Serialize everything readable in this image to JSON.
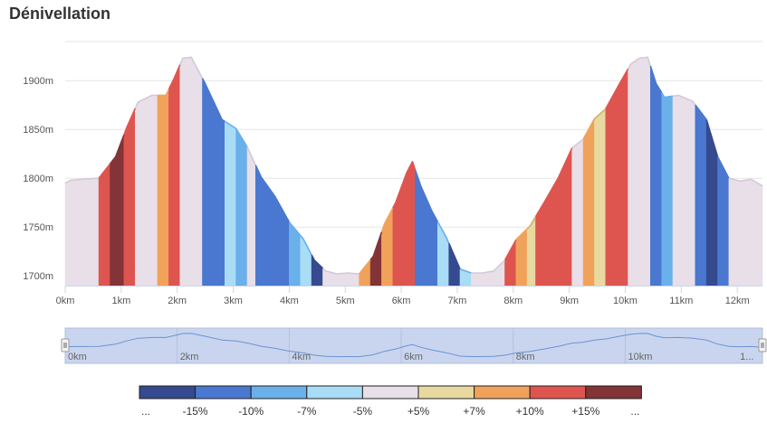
{
  "title": "Dénivellation",
  "chart_data": {
    "type": "area",
    "title": "Dénivellation",
    "xlabel": "",
    "ylabel": "",
    "x_unit": "km",
    "y_unit": "m",
    "xlim": [
      0,
      12.45
    ],
    "ylim": [
      1690,
      1940
    ],
    "x_ticks": [
      0,
      1,
      2,
      3,
      4,
      5,
      6,
      7,
      8,
      9,
      10,
      11,
      12
    ],
    "x_tick_labels": [
      "0km",
      "1km",
      "2km",
      "3km",
      "4km",
      "5km",
      "6km",
      "7km",
      "8km",
      "9km",
      "10km",
      "11km",
      "12km"
    ],
    "y_ticks": [
      1700,
      1750,
      1800,
      1850,
      1900
    ],
    "y_tick_labels": [
      "1700m",
      "1750m",
      "1800m",
      "1850m",
      "1900m"
    ],
    "grid": true,
    "profile": {
      "x": [
        0,
        0.1,
        0.3,
        0.6,
        0.9,
        1.1,
        1.3,
        1.55,
        1.8,
        1.95,
        2.1,
        2.25,
        2.5,
        2.8,
        3.05,
        3.25,
        3.5,
        3.75,
        4.0,
        4.25,
        4.45,
        4.65,
        4.85,
        5.05,
        5.25,
        5.5,
        5.7,
        5.9,
        6.1,
        6.2,
        6.35,
        6.55,
        6.8,
        7.05,
        7.25,
        7.45,
        7.65,
        7.85,
        8.05,
        8.3,
        8.55,
        8.8,
        9.05,
        9.25,
        9.45,
        9.65,
        9.9,
        10.1,
        10.25,
        10.4,
        10.55,
        10.7,
        10.95,
        11.2,
        11.45,
        11.65,
        11.85,
        12.05,
        12.25,
        12.45
      ],
      "y": [
        1795,
        1798,
        1799,
        1800,
        1822,
        1852,
        1878,
        1885,
        1885,
        1903,
        1923,
        1924,
        1897,
        1860,
        1851,
        1832,
        1801,
        1781,
        1755,
        1738,
        1716,
        1705,
        1702,
        1703,
        1702,
        1720,
        1753,
        1775,
        1806,
        1817,
        1792,
        1766,
        1740,
        1707,
        1703,
        1703,
        1705,
        1716,
        1737,
        1751,
        1775,
        1800,
        1831,
        1840,
        1861,
        1871,
        1897,
        1917,
        1923,
        1924,
        1897,
        1883,
        1885,
        1879,
        1860,
        1822,
        1800,
        1797,
        1799,
        1792
      ]
    },
    "segments": [
      {
        "x0": 0.0,
        "x1": 0.6,
        "color": "#e8dfe8"
      },
      {
        "x0": 0.6,
        "x1": 0.8,
        "color": "#de5550"
      },
      {
        "x0": 0.8,
        "x1": 1.05,
        "color": "#823437"
      },
      {
        "x0": 1.05,
        "x1": 1.25,
        "color": "#de5550"
      },
      {
        "x0": 1.25,
        "x1": 1.65,
        "color": "#e8dfe8"
      },
      {
        "x0": 1.65,
        "x1": 1.85,
        "color": "#f1a25a"
      },
      {
        "x0": 1.85,
        "x1": 2.05,
        "color": "#de5550"
      },
      {
        "x0": 2.05,
        "x1": 2.45,
        "color": "#e8dfe8"
      },
      {
        "x0": 2.45,
        "x1": 2.85,
        "color": "#4a77d0"
      },
      {
        "x0": 2.85,
        "x1": 3.05,
        "color": "#a9dcf5"
      },
      {
        "x0": 3.05,
        "x1": 3.25,
        "color": "#6ab0ea"
      },
      {
        "x0": 3.25,
        "x1": 3.4,
        "color": "#e8dfe8"
      },
      {
        "x0": 3.4,
        "x1": 4.0,
        "color": "#4a77d0"
      },
      {
        "x0": 4.0,
        "x1": 4.2,
        "color": "#6ab0ea"
      },
      {
        "x0": 4.2,
        "x1": 4.4,
        "color": "#a9dcf5"
      },
      {
        "x0": 4.4,
        "x1": 4.6,
        "color": "#354a8f"
      },
      {
        "x0": 4.6,
        "x1": 5.25,
        "color": "#e8dfe8"
      },
      {
        "x0": 5.25,
        "x1": 5.45,
        "color": "#f1a25a"
      },
      {
        "x0": 5.45,
        "x1": 5.65,
        "color": "#823437"
      },
      {
        "x0": 5.65,
        "x1": 5.85,
        "color": "#f1a25a"
      },
      {
        "x0": 5.85,
        "x1": 6.25,
        "color": "#de5550"
      },
      {
        "x0": 6.25,
        "x1": 6.65,
        "color": "#4a77d0"
      },
      {
        "x0": 6.65,
        "x1": 6.85,
        "color": "#a9dcf5"
      },
      {
        "x0": 6.85,
        "x1": 7.05,
        "color": "#354a8f"
      },
      {
        "x0": 7.05,
        "x1": 7.25,
        "color": "#a9dcf5"
      },
      {
        "x0": 7.25,
        "x1": 7.85,
        "color": "#e8dfe8"
      },
      {
        "x0": 7.85,
        "x1": 8.05,
        "color": "#de5550"
      },
      {
        "x0": 8.05,
        "x1": 8.25,
        "color": "#f1a25a"
      },
      {
        "x0": 8.25,
        "x1": 8.4,
        "color": "#e8d9a0"
      },
      {
        "x0": 8.4,
        "x1": 9.05,
        "color": "#de5550"
      },
      {
        "x0": 9.05,
        "x1": 9.25,
        "color": "#e8dfe8"
      },
      {
        "x0": 9.25,
        "x1": 9.45,
        "color": "#f1a25a"
      },
      {
        "x0": 9.45,
        "x1": 9.65,
        "color": "#e8d9a0"
      },
      {
        "x0": 9.65,
        "x1": 10.05,
        "color": "#de5550"
      },
      {
        "x0": 10.05,
        "x1": 10.45,
        "color": "#e8dfe8"
      },
      {
        "x0": 10.45,
        "x1": 10.65,
        "color": "#4a77d0"
      },
      {
        "x0": 10.65,
        "x1": 10.85,
        "color": "#6ab0ea"
      },
      {
        "x0": 10.85,
        "x1": 11.25,
        "color": "#e8dfe8"
      },
      {
        "x0": 11.25,
        "x1": 11.45,
        "color": "#4a77d0"
      },
      {
        "x0": 11.45,
        "x1": 11.65,
        "color": "#354a8f"
      },
      {
        "x0": 11.65,
        "x1": 11.85,
        "color": "#4a77d0"
      },
      {
        "x0": 11.85,
        "x1": 12.45,
        "color": "#e8dfe8"
      }
    ],
    "legend": {
      "placement": "bottom",
      "colors": [
        "#354a8f",
        "#4a77d0",
        "#6ab0ea",
        "#a9dcf5",
        "#e8dfe8",
        "#e8d9a0",
        "#f1a25a",
        "#de5550",
        "#823437"
      ],
      "labels": [
        "...",
        "-15%",
        "-10%",
        "-7%",
        "-5%",
        "+5%",
        "+7%",
        "+10%",
        "+15%",
        "..."
      ]
    },
    "navigator": {
      "x_tick_labels": [
        "0km",
        "2km",
        "4km",
        "6km",
        "8km",
        "10km",
        "1..."
      ]
    }
  }
}
